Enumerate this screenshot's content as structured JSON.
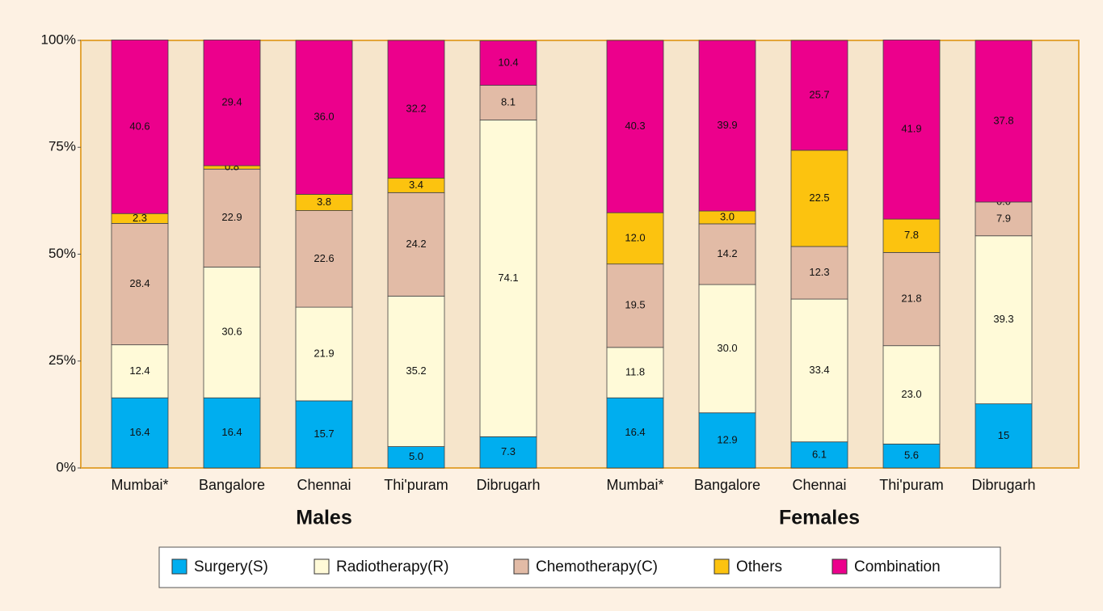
{
  "chart_data": {
    "type": "stacked_bar",
    "categories": [
      "Mumbai*",
      "Bangalore",
      "Chennai",
      "Thi'puram",
      "Dibrugarh",
      "Mumbai*",
      "Bangalore",
      "Chennai",
      "Thi'puram",
      "Dibrugarh"
    ],
    "groups": [
      "Males",
      "Females"
    ],
    "series": [
      {
        "name": "Surgery(S)",
        "color": "#00aeef",
        "values": [
          16.4,
          16.4,
          15.7,
          5.0,
          7.3,
          16.4,
          12.9,
          6.1,
          5.6,
          15
        ],
        "value_labels": [
          "16.4",
          "16.4",
          "15.7",
          "5.0",
          "7.3",
          "16.4",
          "12.9",
          "6.1",
          "5.6",
          "15"
        ]
      },
      {
        "name": "Radiotherapy(R)",
        "color": "#fffad8",
        "values": [
          12.4,
          30.6,
          21.9,
          35.2,
          74.1,
          11.8,
          30.0,
          33.4,
          23.0,
          39.3
        ],
        "value_labels": [
          "12.4",
          "30.6",
          "21.9",
          "35.2",
          "74.1",
          "11.8",
          "30.0",
          "33.4",
          "23.0",
          "39.3"
        ]
      },
      {
        "name": "Chemotherapy(C)",
        "color": "#e2bba6",
        "values": [
          28.4,
          22.9,
          22.6,
          24.2,
          8.1,
          19.5,
          14.2,
          12.3,
          21.8,
          7.9
        ],
        "value_labels": [
          "28.4",
          "22.9",
          "22.6",
          "24.2",
          "8.1",
          "19.5",
          "14.2",
          "12.3",
          "21.8",
          "7.9"
        ]
      },
      {
        "name": "Others",
        "color": "#fcc30f",
        "values": [
          2.3,
          0.8,
          3.8,
          3.4,
          null,
          12.0,
          3.0,
          22.5,
          7.8,
          0.0
        ],
        "value_labels": [
          "2.3",
          "0.8",
          "3.8",
          "3.4",
          null,
          "12.0",
          "3.0",
          "22.5",
          "7.8",
          "0.0"
        ]
      },
      {
        "name": "Combination",
        "color": "#ec008c",
        "values": [
          40.6,
          29.4,
          36.0,
          32.2,
          10.4,
          40.3,
          39.9,
          25.7,
          41.9,
          37.8
        ],
        "value_labels": [
          "40.6",
          "29.4",
          "36.0",
          "32.2",
          "10.4",
          "40.3",
          "39.9",
          "25.7",
          "41.9",
          "37.8"
        ]
      }
    ],
    "ylim": [
      0,
      100
    ],
    "yticks": [
      {
        "value": 0,
        "label": "0%"
      },
      {
        "value": 25,
        "label": "25%"
      },
      {
        "value": 50,
        "label": "50%"
      },
      {
        "value": 75,
        "label": "75%"
      },
      {
        "value": 100,
        "label": "100%"
      }
    ]
  }
}
